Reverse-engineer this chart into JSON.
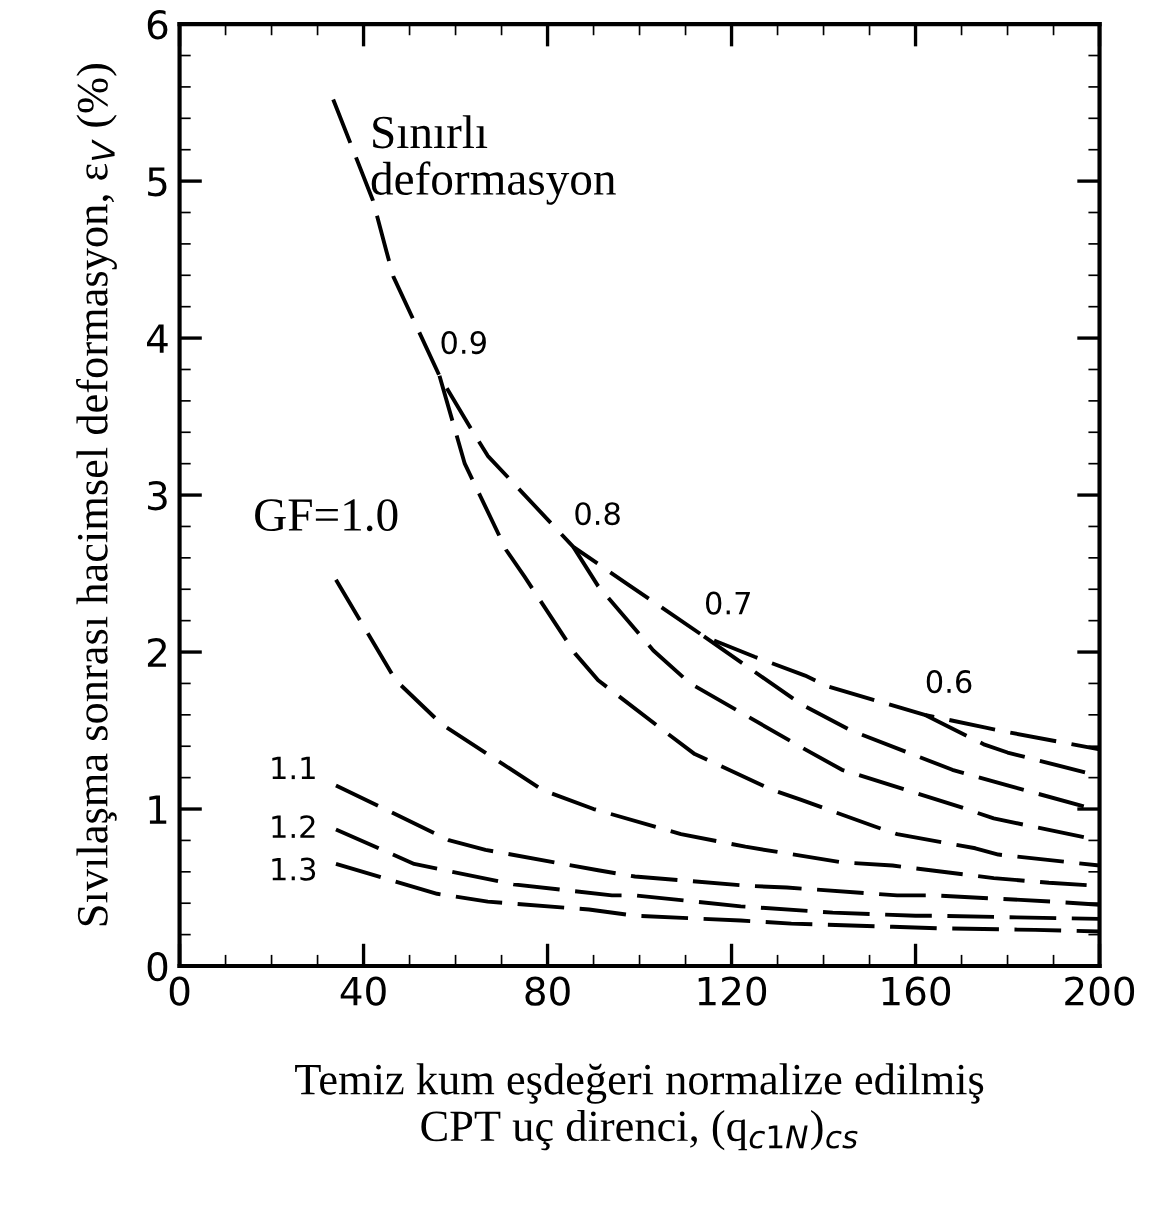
{
  "chart_data": {
    "type": "line",
    "xlabel": "Temiz kum eşdeğeri normalize edilmiş\nCPT uç direnci, (q$_{c1N}$)$_{cs}$",
    "ylabel": "Sıvılaşma sonrası hacimsel deformasyon, ε$_{V}$ (%)",
    "xlim": [
      0,
      200
    ],
    "xticks": [
      0,
      40,
      80,
      120,
      160,
      200
    ],
    "ylim": [
      0,
      6
    ],
    "yticks": [
      0,
      1,
      2,
      3,
      4,
      5,
      6
    ],
    "grid": false,
    "legend": false,
    "marker": "none",
    "series": [
      {
        "name": "Sınırlı\ndeformasyon",
        "color": "#000000",
        "line_style": "dashed",
        "x": [
          33.4,
          42,
          45,
          46.5,
          56.5,
          63,
          67,
          85.6,
          98,
          114,
          125,
          136,
          141,
          162,
          175,
          180,
          200
        ],
        "values": [
          5.52,
          4.88,
          4.55,
          4.39,
          3.76,
          3.44,
          3.25,
          2.67,
          2.42,
          2.1,
          1.97,
          1.85,
          1.78,
          1.6,
          1.52,
          1.49,
          1.38
        ]
      },
      {
        "name": "0.9",
        "color": "#000000",
        "line_style": "dashed",
        "x": [
          56.5,
          62,
          71,
          75,
          86,
          91,
          107,
          112,
          129,
          135,
          151,
          156,
          173,
          178,
          200
        ],
        "values": [
          3.76,
          3.2,
          2.65,
          2.48,
          1.99,
          1.82,
          1.46,
          1.35,
          1.12,
          1.06,
          0.89,
          0.84,
          0.75,
          0.71,
          0.64
        ]
      },
      {
        "name": "0.8",
        "color": "#000000",
        "line_style": "dashed",
        "x": [
          85.6,
          91,
          103,
          111,
          136,
          144,
          170,
          177,
          200
        ],
        "values": [
          2.67,
          2.42,
          2.01,
          1.8,
          1.38,
          1.25,
          1.01,
          0.94,
          0.8
        ]
      },
      {
        "name": "0.7",
        "color": "#000000",
        "line_style": "dashed",
        "x": [
          114,
          135,
          146,
          168,
          180,
          200
        ],
        "values": [
          2.1,
          1.67,
          1.5,
          1.25,
          1.15,
          0.99
        ]
      },
      {
        "name": "0.6",
        "color": "#000000",
        "line_style": "dashed",
        "x": [
          162,
          175,
          180,
          200
        ],
        "values": [
          1.6,
          1.41,
          1.36,
          1.21
        ]
      },
      {
        "name": "GF=1.0",
        "color": "#000000",
        "line_style": "dashed",
        "x": [
          34,
          47,
          57,
          79,
          90,
          109,
          123,
          144,
          155,
          177,
          189,
          200
        ],
        "values": [
          2.46,
          1.82,
          1.54,
          1.12,
          1.0,
          0.84,
          0.76,
          0.66,
          0.64,
          0.56,
          0.53,
          0.51
        ]
      },
      {
        "name": "1.1",
        "color": "#000000",
        "line_style": "dashed",
        "x": [
          34,
          58.7,
          66.5,
          91,
          99,
          124,
          132,
          156,
          164,
          190,
          200
        ],
        "values": [
          1.15,
          0.8,
          0.74,
          0.61,
          0.57,
          0.51,
          0.5,
          0.45,
          0.45,
          0.41,
          0.39
        ]
      },
      {
        "name": "1.2",
        "color": "#000000",
        "line_style": "dashed",
        "x": [
          34,
          51,
          72.6,
          94,
          99,
          122,
          142,
          160,
          165,
          182,
          200
        ],
        "values": [
          0.87,
          0.65,
          0.52,
          0.45,
          0.45,
          0.38,
          0.34,
          0.32,
          0.32,
          0.31,
          0.3
        ]
      },
      {
        "name": "1.3",
        "color": "#000000",
        "line_style": "dashed",
        "x": [
          34,
          56,
          67,
          89,
          99,
          122,
          133,
          155,
          165,
          186,
          200
        ],
        "values": [
          0.65,
          0.46,
          0.41,
          0.36,
          0.32,
          0.29,
          0.27,
          0.25,
          0.24,
          0.23,
          0.22
        ]
      }
    ]
  }
}
